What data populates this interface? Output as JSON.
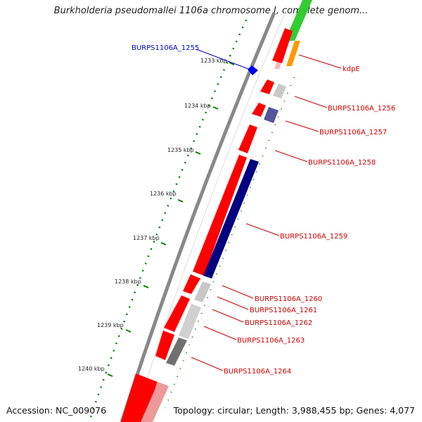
{
  "title": "Burkholderia pseudomallei 1106a chromosome I, complete genom...",
  "footer": {
    "accession": "Accession: NC_009076",
    "topology": "Topology: circular; Length: 3,988,455 bp; Genes: 4,077"
  },
  "colors": {
    "cds_forward": "#ff0000",
    "cds_reverse": "#000080",
    "backbone": "#888888",
    "ticks": "#008000",
    "label_red": "#cc0000",
    "label_blue": "#0000cc"
  },
  "kbp_labels": [
    "1233 kbp",
    "1234 kbp",
    "1235 kbp",
    "1236 kbp",
    "1237 kbp",
    "1238 kbp",
    "1239 kbp",
    "1240 kbp"
  ],
  "gene_labels": [
    "BURPS1106A_1255",
    "kdpE",
    "BURPS1106A_1256",
    "BURPS1106A_1257",
    "BURPS1106A_1258",
    "BURPS1106A_1259",
    "BURPS1106A_1260",
    "BURPS1106A_1261",
    "BURPS1106A_1262",
    "BURPS1106A_1263",
    "BURPS1106A_1264"
  ]
}
